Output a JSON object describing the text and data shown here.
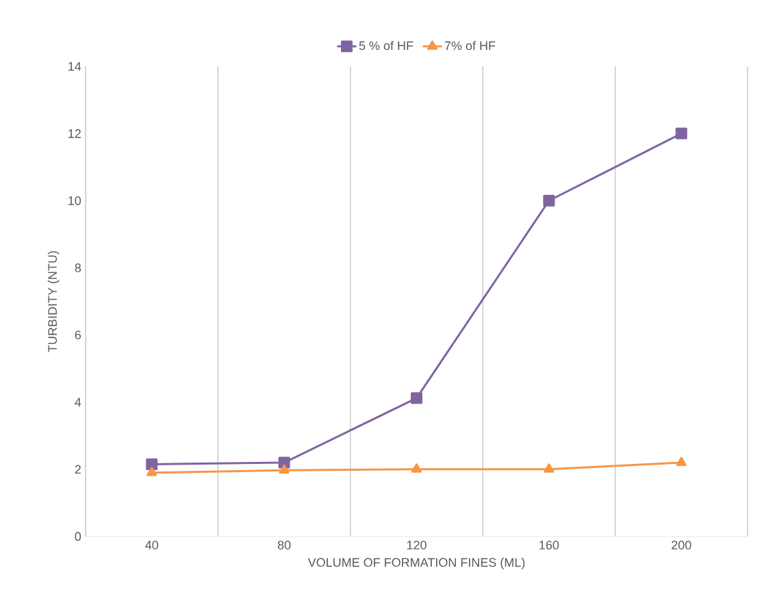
{
  "chart_data": {
    "type": "line",
    "xlabel": "VOLUME OF FORMATION FINES  (ML)",
    "ylabel": "TURBIDITY (NTU)",
    "categories": [
      "40",
      "80",
      "120",
      "160",
      "200"
    ],
    "series": [
      {
        "name": "5 % of HF",
        "color": "#8064a2",
        "marker": "square",
        "values": [
          2.15,
          2.2,
          4.12,
          10,
          12
        ]
      },
      {
        "name": "7% of HF",
        "color": "#f79646",
        "marker": "triangle",
        "values": [
          1.9,
          1.97,
          2.0,
          2.0,
          2.2
        ]
      }
    ],
    "ylim": [
      0,
      14
    ],
    "yticks": [
      0,
      2,
      4,
      6,
      8,
      10,
      12,
      14
    ],
    "grid": "x",
    "legend": "top",
    "line_style": "solid"
  }
}
